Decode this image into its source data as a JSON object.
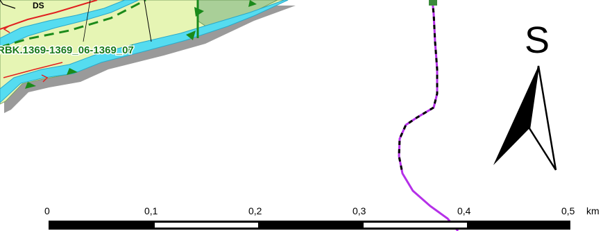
{
  "map": {
    "labels": {
      "ds": "DS",
      "zone": "RBK.1369-1369_06-1369_07"
    },
    "north_arrow": {
      "letter": "S"
    },
    "scale_bar": {
      "ticks": [
        "0",
        "0,1",
        "0,2",
        "0,3",
        "0,4",
        "0,5"
      ],
      "unit": "km"
    },
    "colors": {
      "land_fill": "#e6f5b4",
      "forest_fill": "#a9cf98",
      "water_fill": "#55dcf0",
      "border_line": "#b530e8",
      "protected_line": "#1a8a1a",
      "road_line": "#e02020",
      "shadow": "#9a9a9a"
    }
  }
}
